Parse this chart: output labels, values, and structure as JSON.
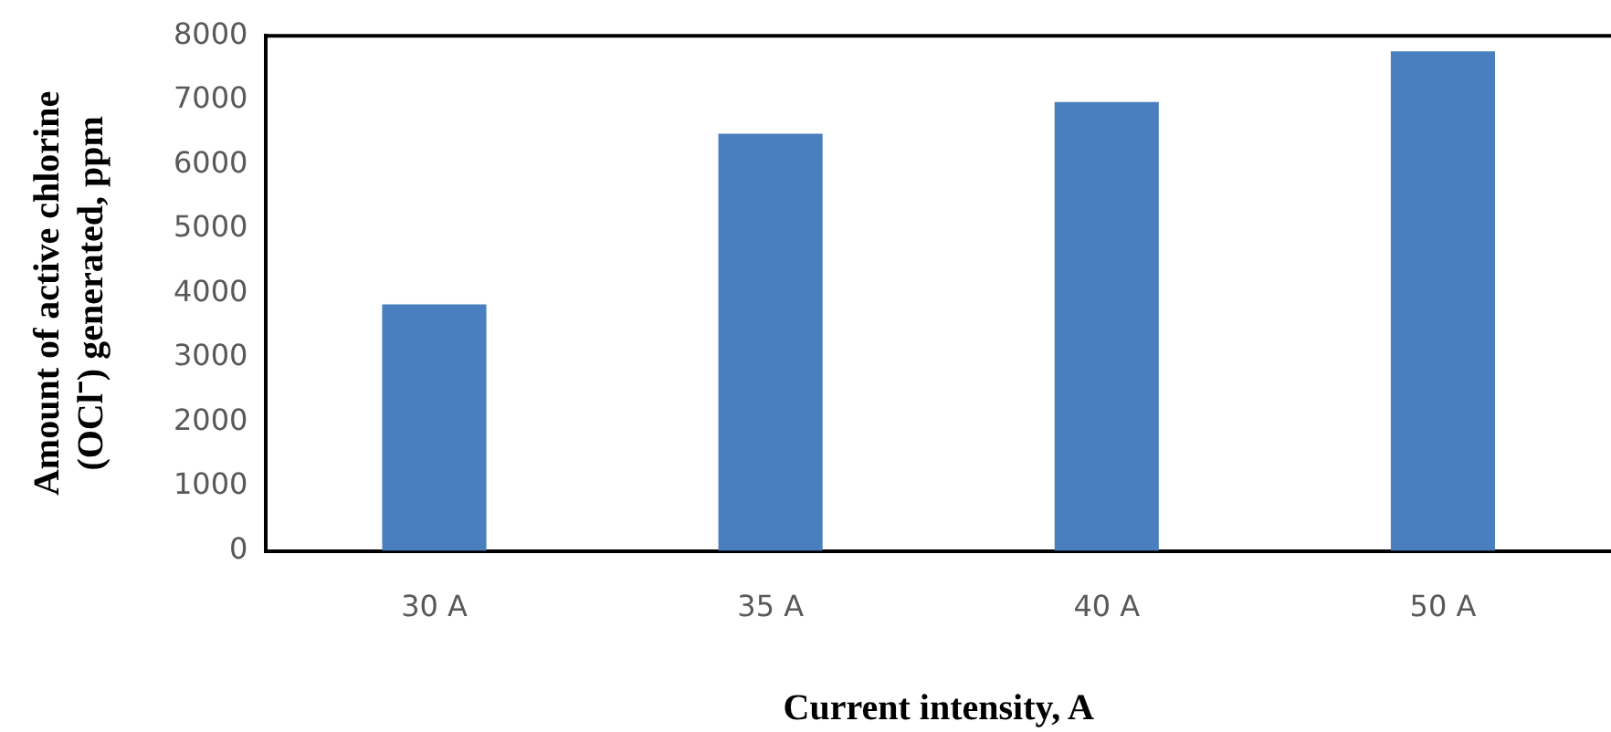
{
  "chart_data": {
    "type": "bar",
    "xlabel": "Current intensity, A",
    "ylabel": "Amount of active chlorine (OCl⁻) generated, ppm",
    "categories": [
      "30 A",
      "35 A",
      "40 A",
      "50 A"
    ],
    "values": [
      3830,
      6480,
      6970,
      7760
    ],
    "color": "#4a7fbf",
    "ylim": [
      0,
      8000
    ],
    "yticks": [
      0,
      1000,
      2000,
      3000,
      4000,
      5000,
      6000,
      7000,
      8000
    ],
    "grid": false,
    "legend": false
  }
}
